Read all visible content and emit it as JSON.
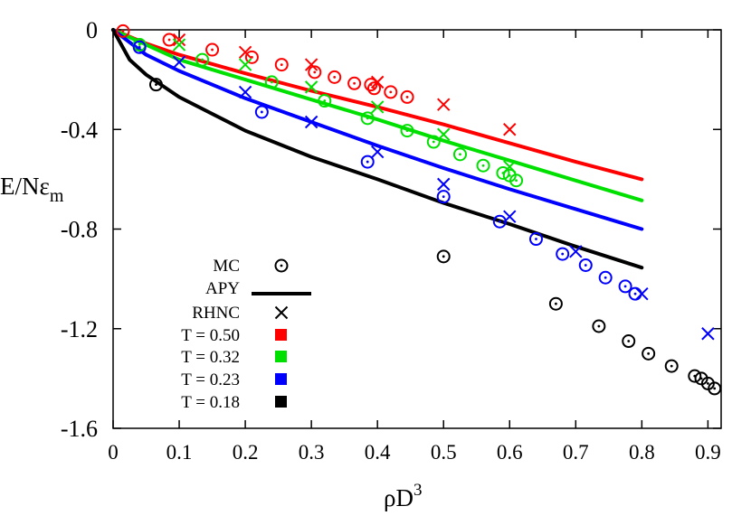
{
  "chart_data": {
    "type": "line",
    "xlabel": "ρD",
    "xlabel_superscript": "3",
    "ylabel": "E/Nε",
    "ylabel_subscript": "m",
    "xlim": [
      0,
      0.92
    ],
    "ylim": [
      -1.6,
      0
    ],
    "x_ticks": [
      "0",
      "0.1",
      "0.2",
      "0.3",
      "0.4",
      "0.5",
      "0.6",
      "0.7",
      "0.8",
      "0.9"
    ],
    "y_ticks": [
      "0",
      "-0.4",
      "-0.8",
      "-1.2",
      "-1.6"
    ],
    "grid": false,
    "legend_position": "bottom-left",
    "legend": {
      "method_entries": [
        "MC",
        "APY",
        "RHNC"
      ],
      "temperature_entries": [
        "T = 0.50",
        "T = 0.32",
        "T = 0.23",
        "T = 0.18"
      ]
    },
    "series": [
      {
        "temperature": "T = 0.50",
        "color": "#ff0000",
        "APY": {
          "x": [
            0,
            0.05,
            0.1,
            0.2,
            0.3,
            0.4,
            0.5,
            0.6,
            0.7,
            0.8
          ],
          "y": [
            0,
            -0.055,
            -0.1,
            -0.175,
            -0.245,
            -0.31,
            -0.38,
            -0.455,
            -0.53,
            -0.6
          ]
        },
        "MC": {
          "x": [
            0.015,
            0.085,
            0.15,
            0.21,
            0.255,
            0.305,
            0.335,
            0.365,
            0.39,
            0.395,
            0.42,
            0.445
          ],
          "y": [
            -0.005,
            -0.04,
            -0.08,
            -0.11,
            -0.14,
            -0.17,
            -0.19,
            -0.215,
            -0.22,
            -0.235,
            -0.25,
            -0.27
          ]
        },
        "RHNC": {
          "x": [
            0.1,
            0.2,
            0.3,
            0.4,
            0.5,
            0.6
          ],
          "y": [
            -0.04,
            -0.09,
            -0.14,
            -0.21,
            -0.3,
            -0.4
          ]
        }
      },
      {
        "temperature": "T = 0.32",
        "color": "#00e000",
        "APY": {
          "x": [
            0,
            0.05,
            0.1,
            0.2,
            0.3,
            0.4,
            0.5,
            0.6,
            0.7,
            0.8
          ],
          "y": [
            0,
            -0.06,
            -0.12,
            -0.2,
            -0.28,
            -0.36,
            -0.445,
            -0.525,
            -0.605,
            -0.685
          ]
        },
        "MC": {
          "x": [
            0.04,
            0.135,
            0.24,
            0.32,
            0.385,
            0.445,
            0.485,
            0.525,
            0.56,
            0.59,
            0.6,
            0.61
          ],
          "y": [
            -0.06,
            -0.12,
            -0.21,
            -0.285,
            -0.355,
            -0.405,
            -0.45,
            -0.5,
            -0.545,
            -0.575,
            -0.585,
            -0.605
          ]
        },
        "RHNC": {
          "x": [
            0.1,
            0.2,
            0.3,
            0.4,
            0.5,
            0.6
          ],
          "y": [
            -0.06,
            -0.14,
            -0.23,
            -0.31,
            -0.42,
            -0.55
          ]
        }
      },
      {
        "temperature": "T = 0.23",
        "color": "#0000ff",
        "APY": {
          "x": [
            0,
            0.05,
            0.1,
            0.2,
            0.3,
            0.4,
            0.5,
            0.6,
            0.7,
            0.8
          ],
          "y": [
            0,
            -0.1,
            -0.165,
            -0.275,
            -0.37,
            -0.465,
            -0.555,
            -0.64,
            -0.72,
            -0.8
          ]
        },
        "MC": {
          "x": [
            0.04,
            0.225,
            0.385,
            0.5,
            0.585,
            0.64,
            0.68,
            0.715,
            0.745,
            0.775,
            0.79
          ],
          "y": [
            -0.07,
            -0.33,
            -0.53,
            -0.67,
            -0.77,
            -0.84,
            -0.9,
            -0.945,
            -0.995,
            -1.03,
            -1.06
          ]
        },
        "RHNC": {
          "x": [
            0.1,
            0.2,
            0.3,
            0.4,
            0.5,
            0.6,
            0.7,
            0.8,
            0.9
          ],
          "y": [
            -0.13,
            -0.25,
            -0.37,
            -0.49,
            -0.62,
            -0.75,
            -0.89,
            -1.06,
            -1.22
          ]
        }
      },
      {
        "temperature": "T = 0.18",
        "color": "#000000",
        "APY": {
          "x": [
            0,
            0.025,
            0.05,
            0.1,
            0.2,
            0.3,
            0.4,
            0.5,
            0.6,
            0.7,
            0.8
          ],
          "y": [
            0,
            -0.12,
            -0.18,
            -0.27,
            -0.405,
            -0.51,
            -0.6,
            -0.695,
            -0.78,
            -0.87,
            -0.955
          ]
        },
        "MC": {
          "x": [
            0.065,
            0.5,
            0.67,
            0.735,
            0.78,
            0.81,
            0.845,
            0.88,
            0.89,
            0.9,
            0.91
          ],
          "y": [
            -0.22,
            -0.91,
            -1.1,
            -1.19,
            -1.25,
            -1.3,
            -1.35,
            -1.39,
            -1.4,
            -1.42,
            -1.44
          ]
        },
        "RHNC": {
          "x": [],
          "y": []
        }
      }
    ]
  }
}
